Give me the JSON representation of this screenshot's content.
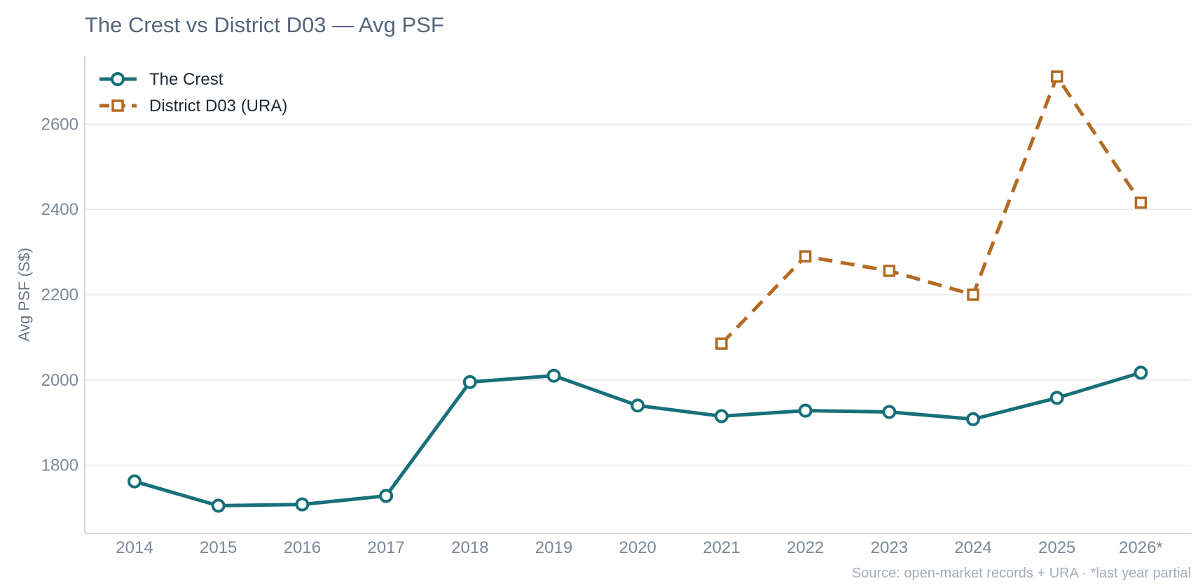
{
  "chart_data": {
    "type": "line",
    "title": "The Crest vs District D03 — Avg PSF",
    "xlabel": "",
    "ylabel": "Avg PSF (S$)",
    "categories": [
      "2014",
      "2015",
      "2016",
      "2017",
      "2018",
      "2019",
      "2020",
      "2021",
      "2022",
      "2023",
      "2024",
      "2025",
      "2026*"
    ],
    "ylim": [
      1640,
      2760
    ],
    "yticks": [
      1800,
      2000,
      2200,
      2400,
      2600
    ],
    "grid": true,
    "legend_position": "top-left",
    "series": [
      {
        "name": "The Crest",
        "color": "#17707a",
        "marker": "circle",
        "dash": "solid",
        "values": [
          1762,
          1705,
          1708,
          1728,
          1995,
          2010,
          1940,
          1915,
          1928,
          1925,
          1908,
          1958,
          2017
        ]
      },
      {
        "name": "District D03 (URA)",
        "color": "#b36a22",
        "marker": "square",
        "dash": "dashed",
        "values": [
          null,
          null,
          null,
          null,
          null,
          null,
          null,
          2085,
          2290,
          2256,
          2200,
          2712,
          2416
        ]
      }
    ],
    "source_note": "Source: open-market records + URA · *last year partial"
  }
}
